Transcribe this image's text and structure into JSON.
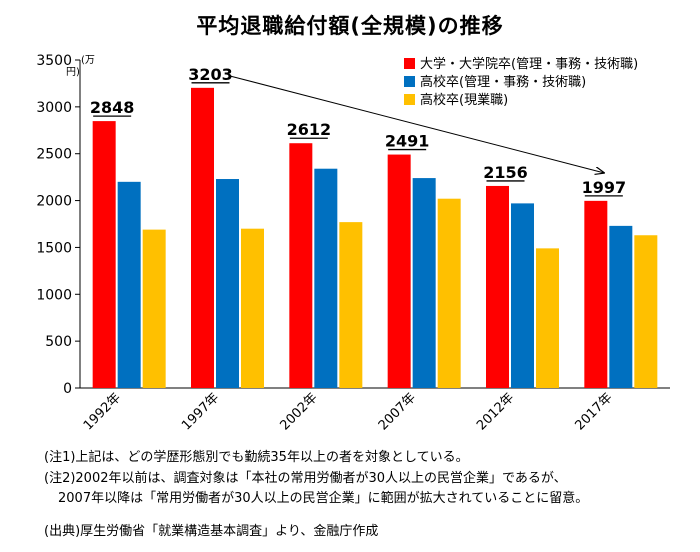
{
  "chart_data": {
    "type": "bar",
    "title": "平均退職給付額(全規模)の推移",
    "unit_label": [
      "(万",
      "円)"
    ],
    "categories": [
      "1992年",
      "1997年",
      "2002年",
      "2007年",
      "2012年",
      "2017年"
    ],
    "series": [
      {
        "name": "大学・大学院卒(管理・事務・技術職)",
        "color": "#ff0000",
        "values": [
          2848,
          3203,
          2612,
          2491,
          2156,
          1997
        ]
      },
      {
        "name": "高校卒(管理・事務・技術職)",
        "color": "#0070c0",
        "values": [
          2200,
          2230,
          2340,
          2240,
          1970,
          1730
        ]
      },
      {
        "name": "高校卒(現業職)",
        "color": "#ffc000",
        "values": [
          1690,
          1700,
          1770,
          2020,
          1490,
          1630
        ]
      }
    ],
    "data_labels": [
      "2848",
      "3203",
      "2612",
      "2491",
      "2156",
      "1997"
    ],
    "ylim": [
      0,
      3500
    ],
    "yticks": [
      0,
      500,
      1000,
      1500,
      2000,
      2500,
      3000,
      3500
    ],
    "grid": false,
    "legend_position": "top-right",
    "trend_arrow": {
      "from_category": "1997年",
      "to_category": "2017年"
    }
  },
  "notes": {
    "note1": "(注1)上記は、どの学歴形態別でも勤続35年以上の者を対象としている。",
    "note2": "(注2)2002年以前は、調査対象は「本社の常用労働者が30人以上の民営企業」であるが、",
    "note2b": "2007年以降は「常用労働者が30人以上の民営企業」に範囲が拡大されていることに留意。",
    "source": "(出典)厚生労働省「就業構造基本調査」より、金融庁作成"
  }
}
